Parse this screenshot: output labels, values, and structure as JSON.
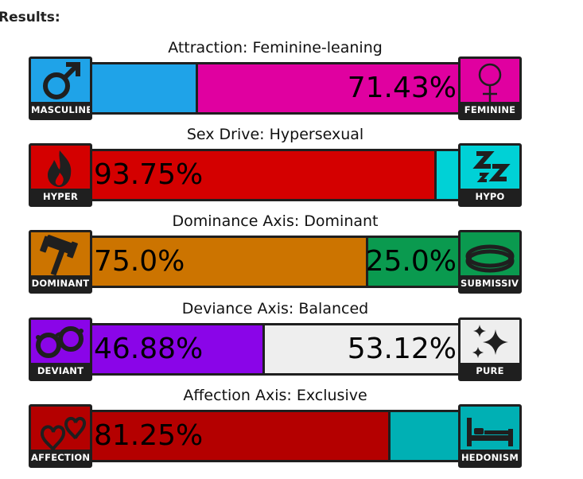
{
  "heading": "Results:",
  "axes": [
    {
      "title": "Attraction: Feminine-leaning",
      "left_label": "MASCULINE",
      "right_label": "FEMININE",
      "left_icon": "male-symbol-icon",
      "right_icon": "female-symbol-icon",
      "left_color": "#1fa3e8",
      "right_color": "#e000a0",
      "left_fraction": 0.2857,
      "right_fraction": 0.7143,
      "left_pct_text": "",
      "right_pct_text": "71.43%"
    },
    {
      "title": "Sex Drive: Hypersexual",
      "left_label": "HYPER",
      "right_label": "HYPO",
      "left_icon": "fire-icon",
      "right_icon": "sleep-zzz-icon",
      "left_color": "#d40000",
      "right_color": "#00d1d6",
      "left_fraction": 0.9375,
      "right_fraction": 0.0625,
      "left_pct_text": "93.75%",
      "right_pct_text": ""
    },
    {
      "title": "Dominance Axis: Dominant",
      "left_label": "DOMINANT",
      "right_label": "SUBMISSIVE",
      "left_icon": "gavel-icon",
      "right_icon": "collar-icon",
      "left_color": "#cc7400",
      "right_color": "#0a9a4f",
      "left_fraction": 0.75,
      "right_fraction": 0.25,
      "left_pct_text": "75.0%",
      "right_pct_text": "25.0%"
    },
    {
      "title": "Deviance Axis: Balanced",
      "left_label": "DEVIANT",
      "right_label": "PURE",
      "left_icon": "handcuffs-icon",
      "right_icon": "sparkles-icon",
      "left_color": "#8a05e8",
      "right_color": "#eeeeee",
      "left_fraction": 0.4688,
      "right_fraction": 0.5312,
      "left_pct_text": "46.88%",
      "right_pct_text": "53.12%"
    },
    {
      "title": "Affection Axis: Exclusive",
      "left_label": "AFFECTION",
      "right_label": "HEDONISM",
      "left_icon": "two-hearts-icon",
      "right_icon": "bed-icon",
      "left_color": "#b40000",
      "right_color": "#00b0b4",
      "left_fraction": 0.8125,
      "right_fraction": 0.1875,
      "left_pct_text": "81.25%",
      "right_pct_text": ""
    }
  ]
}
